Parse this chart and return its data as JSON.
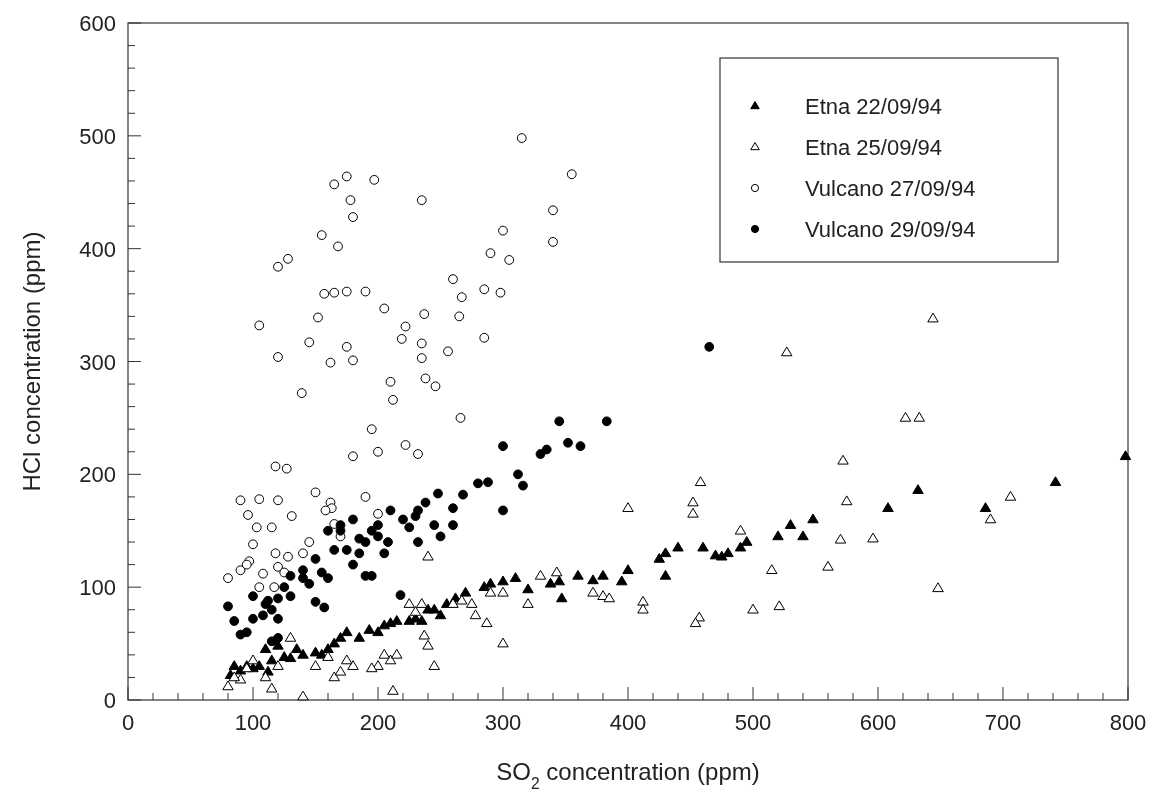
{
  "chart_data": {
    "type": "scatter",
    "xlabel": "SO$_{2}$ concentration (ppm)",
    "ylabel": "HCl concentration (ppm)",
    "xlim": [
      0,
      800
    ],
    "ylim": [
      0,
      600
    ],
    "xticks": [
      0,
      {
        "value": 20,
        "label": null
      },
      {
        "value": 40,
        "label": null
      },
      {
        "value": 60,
        "label": null
      },
      {
        "value": 80,
        "label": null
      },
      100,
      {
        "value": 120,
        "label": null
      },
      {
        "value": 140,
        "label": null
      },
      {
        "value": 160,
        "label": null
      },
      {
        "value": 180,
        "label": null
      },
      200,
      {
        "value": 220,
        "label": null
      },
      {
        "value": 240,
        "label": null
      },
      {
        "value": 260,
        "label": null
      },
      {
        "value": 280,
        "label": null
      },
      300,
      {
        "value": 320,
        "label": null
      },
      {
        "value": 340,
        "label": null
      },
      {
        "value": 360,
        "label": null
      },
      {
        "value": 380,
        "label": null
      },
      400,
      {
        "value": 420,
        "label": null
      },
      {
        "value": 440,
        "label": null
      },
      {
        "value": 460,
        "label": null
      },
      {
        "value": 480,
        "label": null
      },
      500,
      {
        "value": 520,
        "label": null
      },
      {
        "value": 540,
        "label": null
      },
      {
        "value": 560,
        "label": null
      },
      {
        "value": 580,
        "label": null
      },
      600,
      {
        "value": 620,
        "label": null
      },
      {
        "value": 640,
        "label": null
      },
      {
        "value": 660,
        "label": null
      },
      {
        "value": 680,
        "label": null
      },
      700,
      {
        "value": 720,
        "label": null
      },
      {
        "value": 740,
        "label": null
      },
      {
        "value": 760,
        "label": null
      },
      {
        "value": 780,
        "label": null
      },
      800
    ],
    "yticks": [
      0,
      {
        "value": 20,
        "label": null
      },
      {
        "value": 40,
        "label": null
      },
      {
        "value": 60,
        "label": null
      },
      {
        "value": 80,
        "label": null
      },
      100,
      {
        "value": 120,
        "label": null
      },
      {
        "value": 140,
        "label": null
      },
      {
        "value": 160,
        "label": null
      },
      {
        "value": 180,
        "label": null
      },
      200,
      {
        "value": 220,
        "label": null
      },
      {
        "value": 240,
        "label": null
      },
      {
        "value": 260,
        "label": null
      },
      {
        "value": 280,
        "label": null
      },
      300,
      {
        "value": 320,
        "label": null
      },
      {
        "value": 340,
        "label": null
      },
      {
        "value": 360,
        "label": null
      },
      {
        "value": 380,
        "label": null
      },
      400,
      {
        "value": 420,
        "label": null
      },
      {
        "value": 440,
        "label": null
      },
      {
        "value": 460,
        "label": null
      },
      {
        "value": 480,
        "label": null
      },
      500,
      {
        "value": 520,
        "label": null
      },
      {
        "value": 540,
        "label": null
      },
      {
        "value": 560,
        "label": null
      },
      {
        "value": 580,
        "label": null
      },
      600
    ],
    "grid": false,
    "legend": "top right",
    "series": [
      {
        "name": "Etna 22/09/94",
        "color": "#000000",
        "marker": "triangle",
        "x": [
          798,
          742,
          632,
          686,
          608,
          548,
          540,
          530,
          520,
          495,
          490,
          480,
          470,
          475,
          460,
          440,
          430,
          425,
          430,
          400,
          395,
          380,
          372,
          360,
          345,
          347,
          338,
          320,
          310,
          300,
          290,
          285,
          270,
          262,
          255,
          245,
          250,
          240,
          235,
          225,
          230,
          215,
          210,
          205,
          200,
          193,
          185,
          175,
          170,
          165,
          160,
          155,
          150,
          140,
          135,
          125,
          115,
          110,
          112,
          105,
          100,
          95,
          90,
          85,
          82,
          120,
          130
        ],
        "values": [
          216,
          193,
          186,
          170,
          170,
          160,
          145,
          155,
          145,
          140,
          135,
          130,
          128,
          127,
          135,
          135,
          130,
          125,
          110,
          115,
          105,
          110,
          106,
          110,
          105,
          90,
          103,
          98,
          108,
          105,
          103,
          100,
          95,
          90,
          85,
          80,
          75,
          80,
          70,
          70,
          72,
          70,
          68,
          66,
          60,
          62,
          55,
          60,
          55,
          50,
          45,
          40,
          42,
          40,
          45,
          38,
          35,
          45,
          25,
          30,
          28,
          30,
          26,
          30,
          22,
          48,
          37
        ]
      },
      {
        "name": "Etna 25/09/94",
        "color": "#ffffff",
        "marker": "triangle",
        "x": [
          644,
          527,
          622,
          633,
          572,
          458,
          452,
          452,
          400,
          575,
          690,
          706,
          596,
          570,
          560,
          515,
          490,
          648,
          521,
          500,
          457,
          454,
          412,
          412,
          380,
          385,
          372,
          343,
          330,
          320,
          300,
          290,
          278,
          287,
          300,
          267,
          275,
          240,
          235,
          225,
          230,
          245,
          237,
          240,
          210,
          205,
          200,
          195,
          215,
          212,
          180,
          175,
          165,
          160,
          150,
          140,
          120,
          115,
          110,
          100,
          95,
          90,
          85,
          80,
          130,
          170,
          260
        ],
        "values": [
          338,
          308,
          250,
          250,
          212,
          193,
          175,
          165,
          170,
          176,
          160,
          180,
          143,
          142,
          118,
          115,
          150,
          99,
          83,
          80,
          73,
          68,
          87,
          80,
          92,
          90,
          95,
          113,
          110,
          85,
          95,
          95,
          75,
          68,
          50,
          88,
          85,
          127,
          85,
          85,
          78,
          30,
          57,
          48,
          35,
          40,
          30,
          28,
          40,
          8,
          30,
          35,
          20,
          38,
          30,
          3,
          30,
          10,
          20,
          35,
          28,
          18,
          20,
          12,
          55,
          25,
          85
        ]
      },
      {
        "name": "Vulcano 27/09/94",
        "color": "#ffffff",
        "marker": "circle",
        "x": [
          315,
          355,
          175,
          197,
          165,
          178,
          235,
          180,
          340,
          300,
          155,
          168,
          340,
          128,
          305,
          120,
          290,
          260,
          298,
          175,
          157,
          165,
          190,
          285,
          205,
          237,
          267,
          265,
          105,
          152,
          222,
          145,
          175,
          235,
          219,
          120,
          180,
          256,
          285,
          162,
          235,
          210,
          238,
          246,
          139,
          212,
          266,
          195,
          222,
          118,
          127,
          200,
          180,
          232,
          190,
          150,
          120,
          90,
          105,
          162,
          163,
          158,
          96,
          131,
          115,
          103,
          200,
          100,
          170,
          128,
          118,
          140,
          145,
          120,
          97,
          125,
          108,
          90,
          95,
          165,
          80,
          105,
          117
        ],
        "values": [
          498,
          466,
          464,
          461,
          457,
          443,
          443,
          428,
          434,
          416,
          412,
          402,
          406,
          391,
          390,
          384,
          396,
          373,
          361,
          362,
          360,
          361,
          362,
          364,
          347,
          342,
          357,
          340,
          332,
          339,
          331,
          317,
          313,
          316,
          320,
          304,
          301,
          309,
          321,
          299,
          303,
          282,
          285,
          278,
          272,
          266,
          250,
          240,
          226,
          207,
          205,
          220,
          216,
          218,
          180,
          184,
          177,
          177,
          178,
          175,
          170,
          168,
          164,
          163,
          153,
          153,
          165,
          138,
          145,
          127,
          130,
          130,
          140,
          118,
          123,
          113,
          112,
          115,
          120,
          156,
          108,
          100,
          100
        ]
      },
      {
        "name": "Vulcano 29/09/94",
        "color": "#000000",
        "marker": "circle",
        "x": [
          465,
          345,
          383,
          300,
          335,
          352,
          362,
          330,
          312,
          316,
          280,
          268,
          300,
          260,
          238,
          232,
          230,
          220,
          245,
          225,
          208,
          250,
          232,
          218,
          210,
          200,
          195,
          190,
          185,
          180,
          170,
          160,
          175,
          165,
          150,
          140,
          155,
          130,
          145,
          150,
          157,
          130,
          120,
          112,
          110,
          100,
          108,
          115,
          120,
          100,
          95,
          90,
          85,
          80,
          125,
          120,
          115,
          190,
          195,
          205,
          180,
          170,
          200,
          140,
          160,
          185,
          260,
          248,
          288
        ],
        "values": [
          313,
          247,
          247,
          225,
          222,
          228,
          225,
          218,
          200,
          190,
          192,
          182,
          168,
          170,
          175,
          168,
          163,
          160,
          155,
          153,
          140,
          145,
          140,
          93,
          168,
          155,
          150,
          140,
          130,
          160,
          155,
          150,
          133,
          133,
          125,
          115,
          113,
          110,
          103,
          87,
          82,
          92,
          90,
          88,
          85,
          92,
          75,
          80,
          72,
          72,
          60,
          58,
          70,
          83,
          100,
          55,
          52,
          110,
          110,
          130,
          120,
          150,
          145,
          108,
          108,
          143,
          155,
          183,
          193
        ]
      }
    ]
  }
}
